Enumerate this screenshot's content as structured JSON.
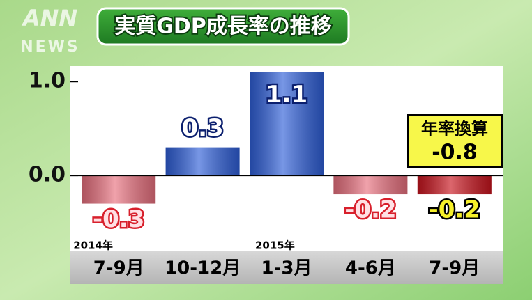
{
  "chart_data": {
    "type": "bar",
    "title": "実質GDP成長率の推移",
    "watermark": "ANN",
    "watermark_sub": "NEWS",
    "categories": [
      "7-9月",
      "10-12月",
      "1-3月",
      "4-6月",
      "7-9月"
    ],
    "year_labels": [
      "2014年",
      null,
      "2015年",
      null,
      null
    ],
    "values": [
      -0.3,
      0.3,
      1.1,
      -0.2,
      -0.2
    ],
    "colors": [
      "#e8707e",
      "#2f5fd8",
      "#2f5fd8",
      "#e8707e",
      "#c8141e"
    ],
    "ylim": [
      -0.6,
      1.15
    ],
    "yticks": [
      {
        "value": 0,
        "label": "0.0"
      },
      {
        "value": 1,
        "label": "1.0"
      }
    ],
    "annotation": {
      "label": "年率換算",
      "value": -0.8
    }
  }
}
